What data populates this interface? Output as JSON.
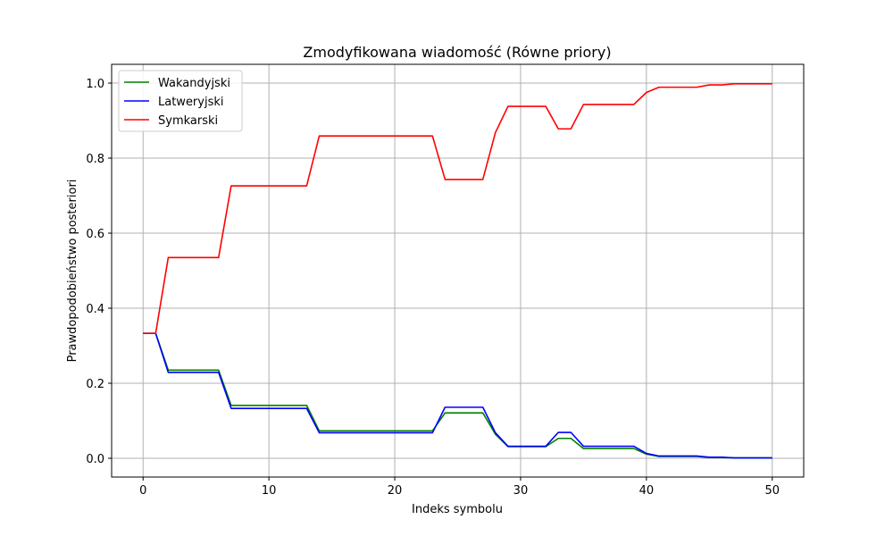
{
  "chart_data": {
    "type": "line",
    "title": "Zmodyfikowana wiadomość (Równe priory)",
    "xlabel": "Indeks symbolu",
    "ylabel": "Prawdopodobieństwo posteriori",
    "xlim": [
      -2.5,
      52.5
    ],
    "ylim": [
      -0.05,
      1.05
    ],
    "xticks": [
      0,
      10,
      20,
      30,
      40,
      50
    ],
    "yticks": [
      0.0,
      0.2,
      0.4,
      0.6,
      0.8,
      1.0
    ],
    "xtick_labels": [
      "0",
      "10",
      "20",
      "30",
      "40",
      "50"
    ],
    "ytick_labels": [
      "0.0",
      "0.2",
      "0.4",
      "0.6",
      "0.8",
      "1.0"
    ],
    "grid": true,
    "legend_position": "top-left",
    "x": [
      0,
      1,
      2,
      3,
      4,
      5,
      6,
      7,
      8,
      9,
      10,
      11,
      12,
      13,
      14,
      15,
      16,
      17,
      18,
      19,
      20,
      21,
      22,
      23,
      24,
      25,
      26,
      27,
      28,
      29,
      30,
      31,
      32,
      33,
      34,
      35,
      36,
      37,
      38,
      39,
      40,
      41,
      42,
      43,
      44,
      45,
      46,
      47,
      48,
      49,
      50
    ],
    "series": [
      {
        "name": "Wakandyjski",
        "color": "#008000",
        "values": [
          0.333,
          0.333,
          0.235,
          0.235,
          0.235,
          0.235,
          0.235,
          0.141,
          0.141,
          0.141,
          0.141,
          0.141,
          0.141,
          0.141,
          0.073,
          0.073,
          0.073,
          0.073,
          0.073,
          0.073,
          0.073,
          0.073,
          0.073,
          0.073,
          0.121,
          0.121,
          0.121,
          0.121,
          0.064,
          0.031,
          0.031,
          0.031,
          0.031,
          0.053,
          0.053,
          0.026,
          0.026,
          0.026,
          0.026,
          0.026,
          0.011,
          0.005,
          0.005,
          0.005,
          0.005,
          0.002,
          0.002,
          0.001,
          0.001,
          0.001,
          0.001
        ]
      },
      {
        "name": "Latweryjski",
        "color": "#0000ff",
        "values": [
          0.333,
          0.333,
          0.229,
          0.229,
          0.229,
          0.229,
          0.229,
          0.133,
          0.133,
          0.133,
          0.133,
          0.133,
          0.133,
          0.133,
          0.068,
          0.068,
          0.068,
          0.068,
          0.068,
          0.068,
          0.068,
          0.068,
          0.068,
          0.068,
          0.136,
          0.136,
          0.136,
          0.136,
          0.068,
          0.032,
          0.032,
          0.032,
          0.032,
          0.069,
          0.069,
          0.032,
          0.032,
          0.032,
          0.032,
          0.032,
          0.013,
          0.006,
          0.006,
          0.006,
          0.006,
          0.003,
          0.003,
          0.001,
          0.001,
          0.001,
          0.001
        ]
      },
      {
        "name": "Symkarski",
        "color": "#ff0000",
        "values": [
          0.333,
          0.333,
          0.535,
          0.535,
          0.535,
          0.535,
          0.535,
          0.726,
          0.726,
          0.726,
          0.726,
          0.726,
          0.726,
          0.726,
          0.859,
          0.859,
          0.859,
          0.859,
          0.859,
          0.859,
          0.859,
          0.859,
          0.859,
          0.859,
          0.743,
          0.743,
          0.743,
          0.743,
          0.868,
          0.938,
          0.938,
          0.938,
          0.938,
          0.878,
          0.878,
          0.943,
          0.943,
          0.943,
          0.943,
          0.943,
          0.975,
          0.989,
          0.989,
          0.989,
          0.989,
          0.995,
          0.995,
          0.998,
          0.998,
          0.998,
          0.998
        ]
      }
    ]
  }
}
